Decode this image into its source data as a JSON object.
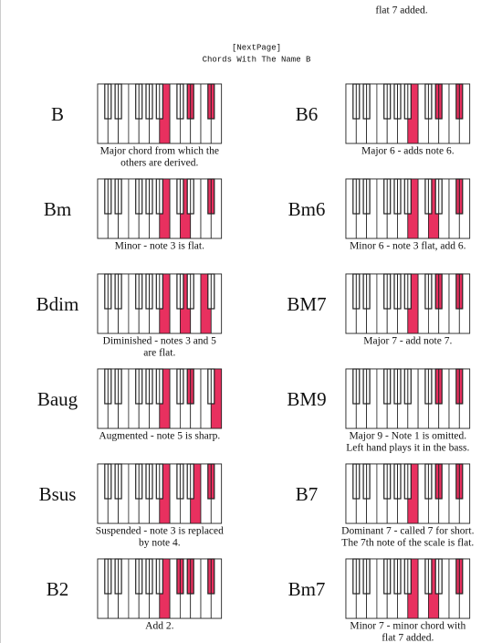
{
  "header": {
    "fragment": "flat 7 added.",
    "page_marker": "[NextPage]",
    "title": "Chords With The Name B"
  },
  "chords": [
    {
      "name": "B",
      "description": [
        "Major chord from which the",
        "others are derived."
      ]
    },
    {
      "name": "B6",
      "description": [
        "Major 6 - adds note 6."
      ]
    },
    {
      "name": "Bm",
      "description": [
        "Minor - note 3 is flat."
      ]
    },
    {
      "name": "Bm6",
      "description": [
        "Minor 6 - note 3 flat, add 6."
      ]
    },
    {
      "name": "Bdim",
      "description": [
        "Diminished - notes 3 and 5",
        "are flat."
      ]
    },
    {
      "name": "BM7",
      "description": [
        "Major 7 - add note 7."
      ]
    },
    {
      "name": "Baug",
      "description": [
        "Augmented - note 5 is sharp."
      ]
    },
    {
      "name": "BM9",
      "description": [
        "Major 9 - Note 1 is omitted.",
        "Left hand plays it in the bass."
      ]
    },
    {
      "name": "Bsus",
      "description": [
        "Suspended - note 3 is replaced",
        "by note 4."
      ]
    },
    {
      "name": "B7",
      "description": [
        "Dominant 7 - called 7 for short.",
        "The 7th note of the scale is flat."
      ]
    },
    {
      "name": "B2",
      "description": [
        "Add 2."
      ]
    },
    {
      "name": "Bm7",
      "description": [
        "Minor 7 - minor chord with",
        "flat 7 added."
      ]
    }
  ]
}
